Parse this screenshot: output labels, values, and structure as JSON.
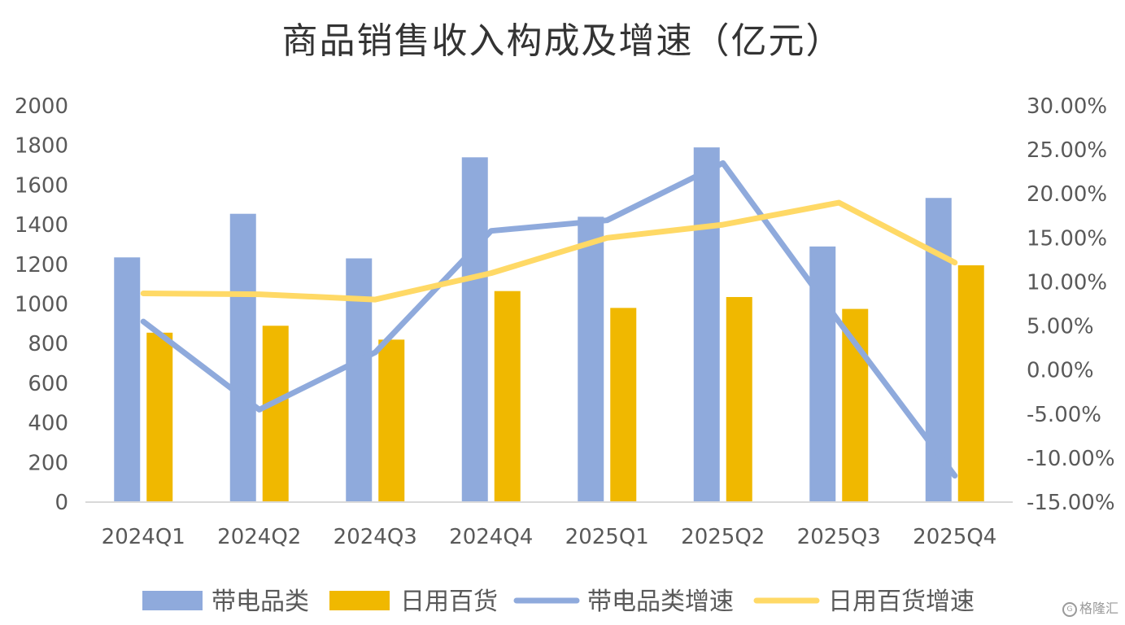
{
  "chart_data": {
    "type": "bar",
    "title": "商品销售收入构成及增速（亿元）",
    "categories": [
      "2024Q1",
      "2024Q2",
      "2024Q3",
      "2024Q4",
      "2025Q1",
      "2025Q2",
      "2025Q3",
      "2025Q4"
    ],
    "ylim": [
      0,
      2000
    ],
    "yticks": [
      "0",
      "200",
      "400",
      "600",
      "800",
      "1000",
      "1200",
      "1400",
      "1600",
      "1800",
      "2000"
    ],
    "y2lim": [
      -15,
      30
    ],
    "y2ticks": [
      "-15.00%",
      "-10.00%",
      "-5.00%",
      "0.00%",
      "5.00%",
      "10.00%",
      "15.00%",
      "20.00%",
      "25.00%",
      "30.00%"
    ],
    "series": [
      {
        "name": "带电品类",
        "type": "bar",
        "axis": "left",
        "color": "#8FAADC",
        "values": [
          1235,
          1455,
          1230,
          1740,
          1440,
          1790,
          1290,
          1535
        ]
      },
      {
        "name": "日用百货",
        "type": "bar",
        "axis": "left",
        "color": "#F0B800",
        "values": [
          855,
          890,
          820,
          1065,
          980,
          1035,
          975,
          1195
        ]
      },
      {
        "name": "带电品类增速",
        "type": "line",
        "axis": "right",
        "color": "#8FAADC",
        "values": [
          5.5,
          -4.5,
          2.0,
          15.8,
          17.0,
          23.5,
          5.5,
          -12.0
        ]
      },
      {
        "name": "日用百货增速",
        "type": "line",
        "axis": "right",
        "color": "#FFD966",
        "values": [
          8.7,
          8.6,
          8.0,
          11.0,
          15.0,
          16.5,
          19.0,
          12.2
        ]
      }
    ],
    "legend": "bottom",
    "grid": false
  },
  "watermark": "格隆汇"
}
